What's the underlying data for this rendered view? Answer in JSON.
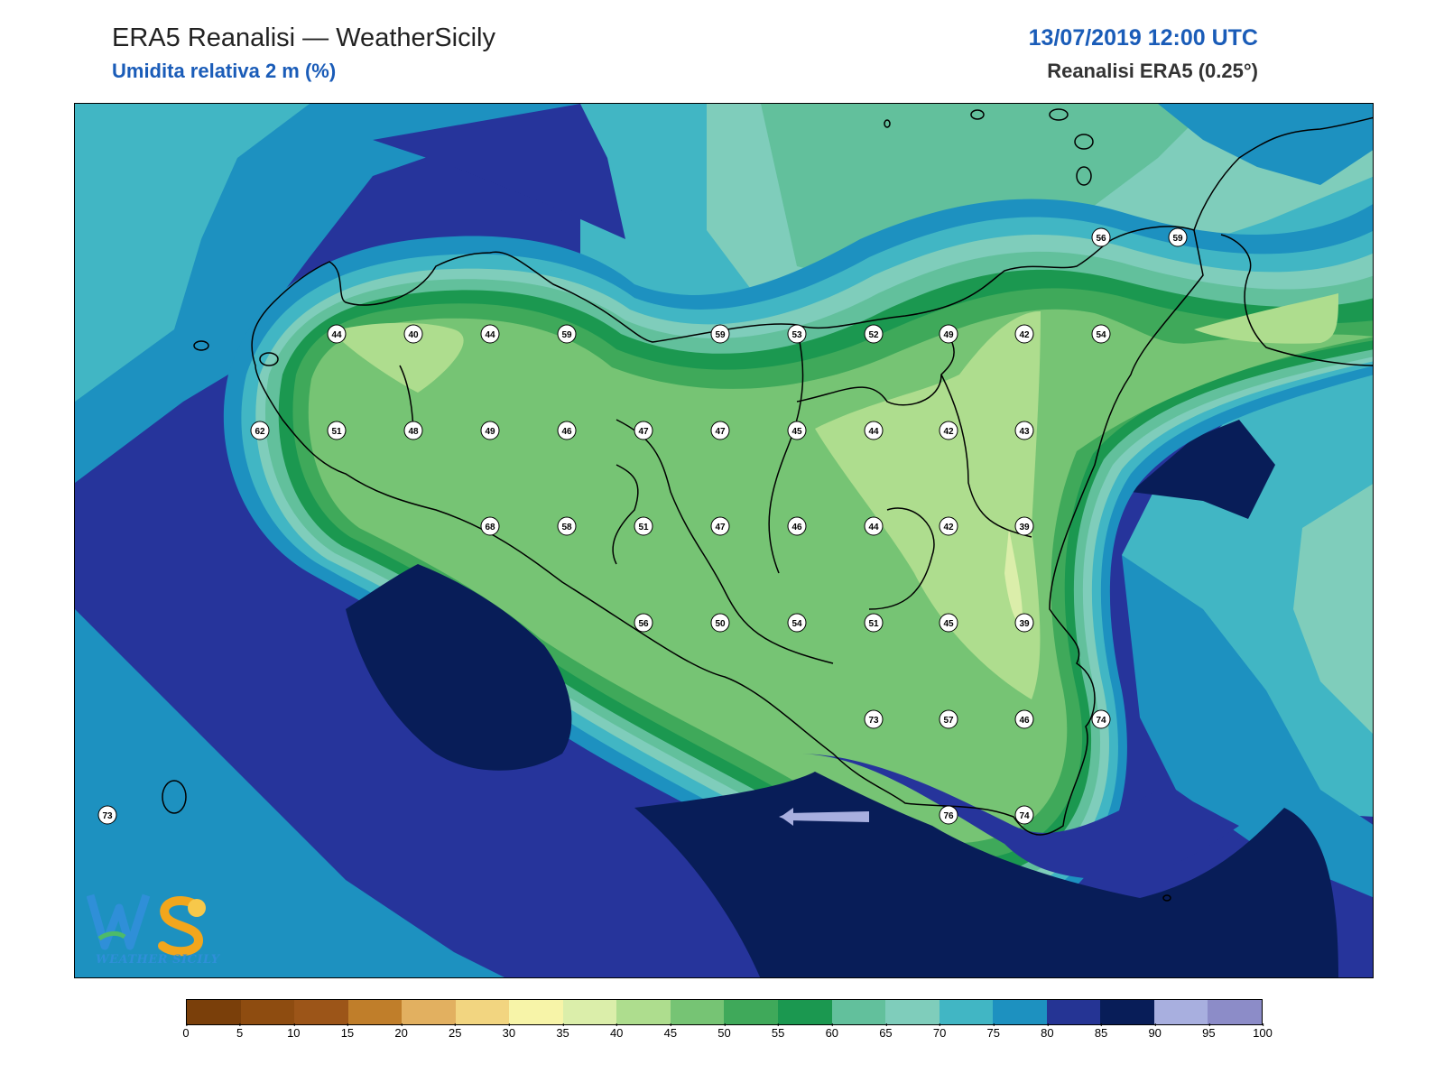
{
  "header": {
    "title": "ERA5 Reanalisi — WeatherSicily",
    "subtitle": "Umidita relativa 2 m (%)",
    "datetime": "13/07/2019 12:00 UTC",
    "source": "Reanalisi ERA5 (0.25°)"
  },
  "logo": {
    "text": "WEATHER SICILY",
    "mark": "WS"
  },
  "colorbar": {
    "colors": [
      "#7a3f0a",
      "#8e4c10",
      "#9c5518",
      "#c07e2a",
      "#e2b060",
      "#f2d580",
      "#f7f4a8",
      "#dbeeaa",
      "#aedd8e",
      "#76c474",
      "#3fa95a",
      "#1b9850",
      "#62c09c",
      "#7fcdbb",
      "#41b6c4",
      "#1d91c0",
      "#253494",
      "#081d58",
      "#a8afdf",
      "#8c8cc8"
    ],
    "ticks": [
      "0",
      "5",
      "10",
      "15",
      "20",
      "25",
      "30",
      "35",
      "40",
      "45",
      "50",
      "55",
      "60",
      "65",
      "70",
      "75",
      "80",
      "85",
      "90",
      "95",
      "100"
    ]
  },
  "stations": [
    {
      "v": "44"
    },
    {
      "v": "40"
    },
    {
      "v": "44"
    },
    {
      "v": "59"
    },
    {
      "v": "59"
    },
    {
      "v": "53"
    },
    {
      "v": "52"
    },
    {
      "v": "49"
    },
    {
      "v": "42"
    },
    {
      "v": "54"
    },
    {
      "v": "56"
    },
    {
      "v": "59"
    },
    {
      "v": "62"
    },
    {
      "v": "51"
    },
    {
      "v": "48"
    },
    {
      "v": "49"
    },
    {
      "v": "46"
    },
    {
      "v": "47"
    },
    {
      "v": "47"
    },
    {
      "v": "45"
    },
    {
      "v": "44"
    },
    {
      "v": "42"
    },
    {
      "v": "43"
    },
    {
      "v": "68"
    },
    {
      "v": "58"
    },
    {
      "v": "51"
    },
    {
      "v": "47"
    },
    {
      "v": "46"
    },
    {
      "v": "44"
    },
    {
      "v": "42"
    },
    {
      "v": "39"
    },
    {
      "v": "56"
    },
    {
      "v": "50"
    },
    {
      "v": "54"
    },
    {
      "v": "51"
    },
    {
      "v": "45"
    },
    {
      "v": "39"
    },
    {
      "v": "73"
    },
    {
      "v": "57"
    },
    {
      "v": "46"
    },
    {
      "v": "74"
    },
    {
      "v": "76"
    },
    {
      "v": "74"
    },
    {
      "v": "73"
    }
  ]
}
